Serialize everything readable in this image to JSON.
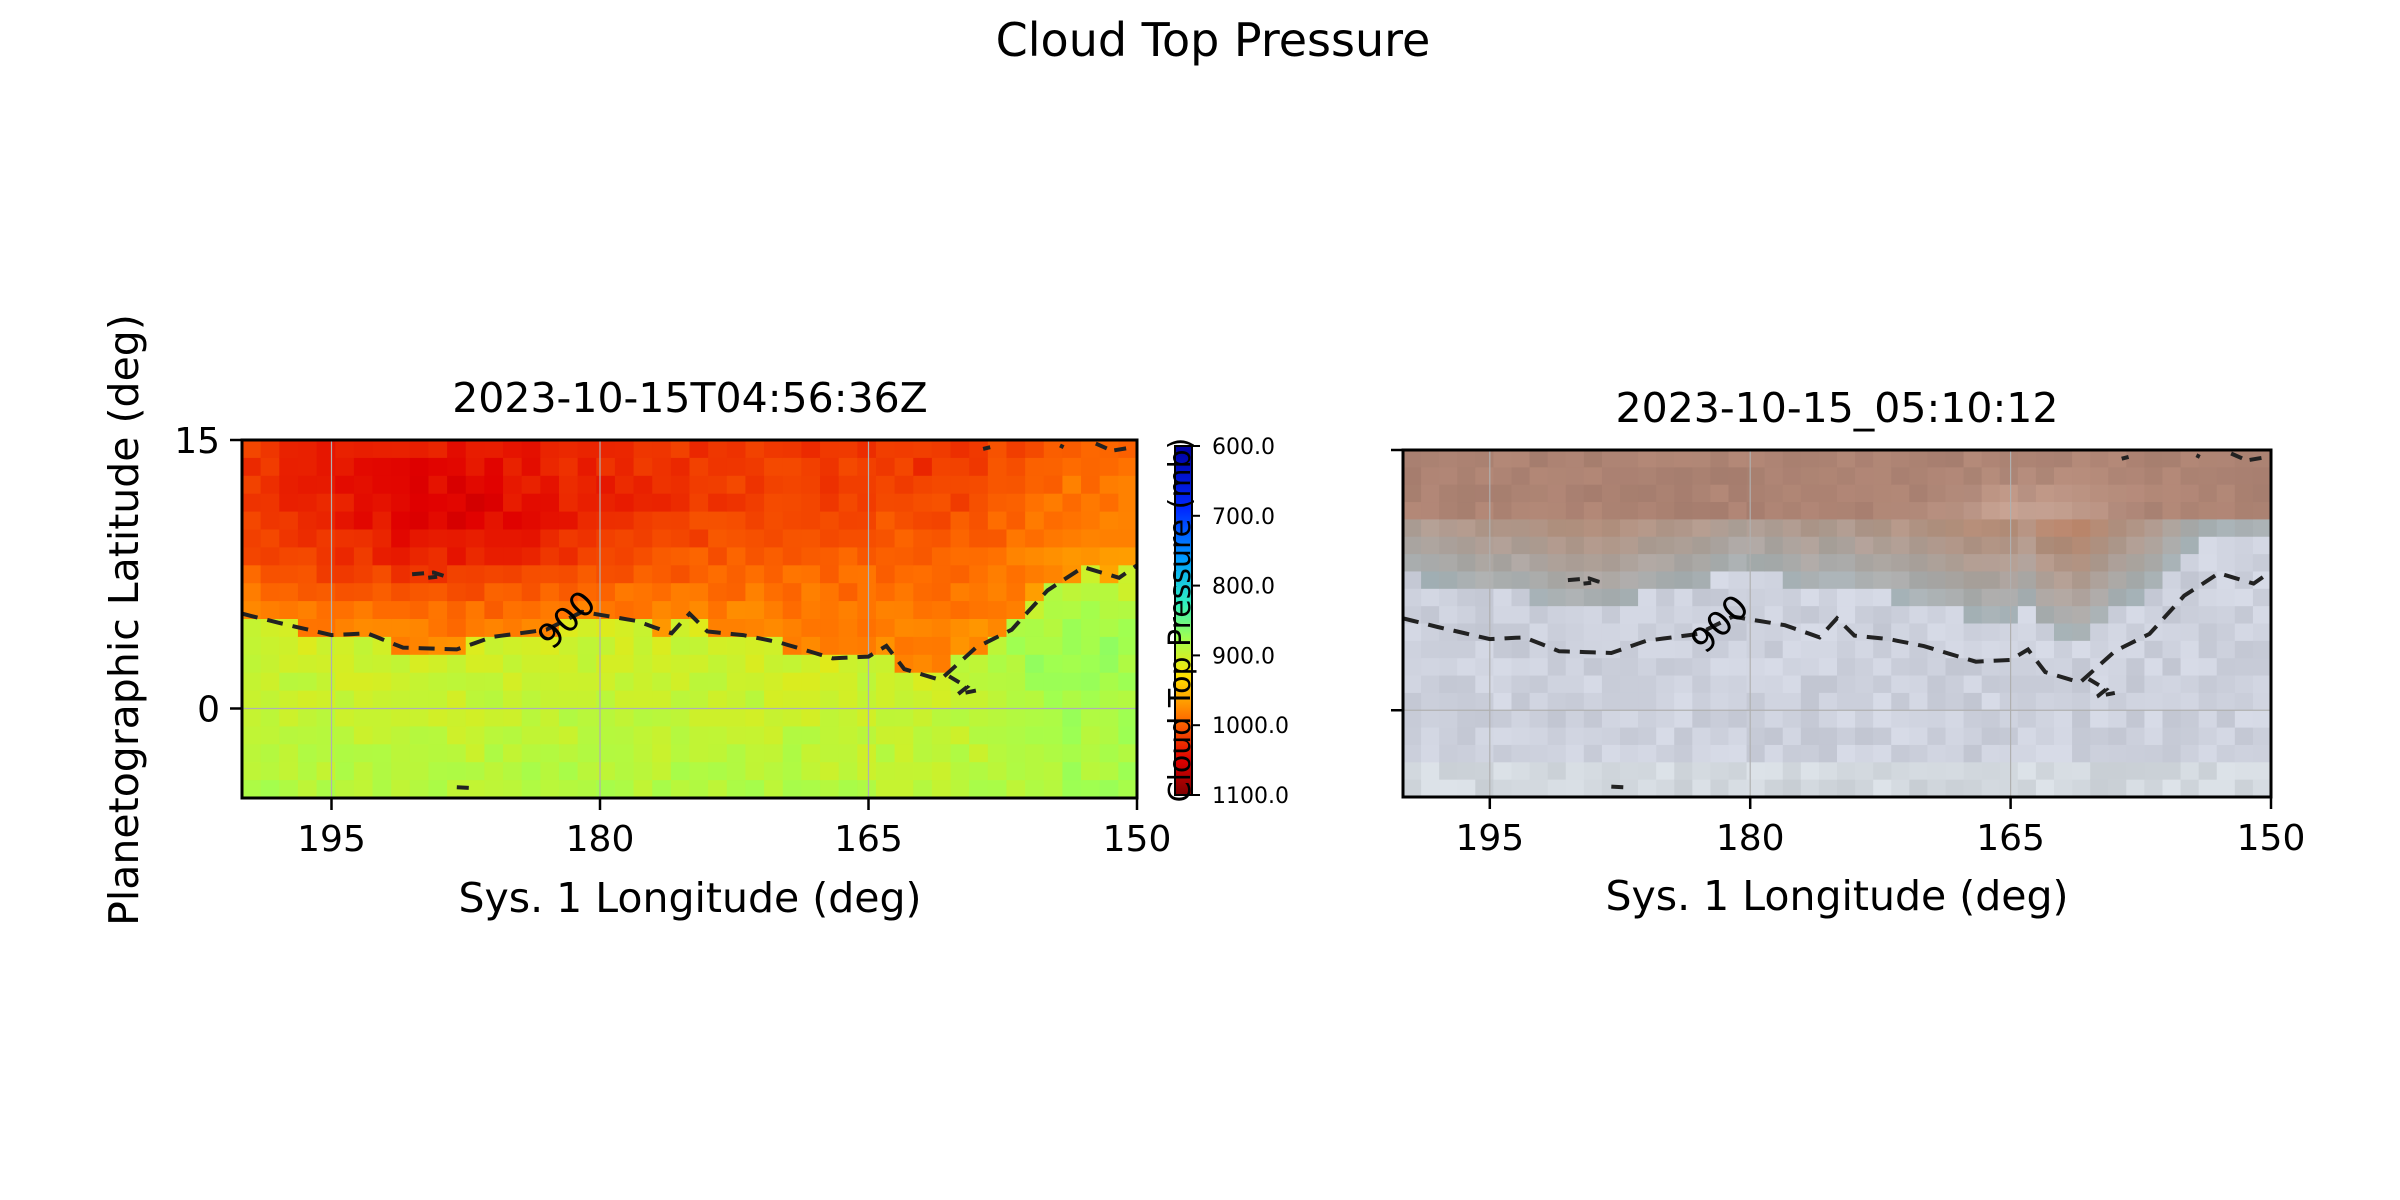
{
  "figure": {
    "title": "Cloud Top Pressure"
  },
  "chart_data": [
    {
      "type": "heatmap",
      "title": "2023-10-15T04:56:36Z",
      "xlabel": "Sys. 1 Longitude (deg)",
      "ylabel": "Planetographic Latitude (deg)",
      "xlim": [
        200,
        150
      ],
      "ylim": [
        -5,
        15
      ],
      "xticks": [
        "195",
        "180",
        "165",
        "150"
      ],
      "yticks": [
        "15",
        "0"
      ],
      "grid": true,
      "colormap": "jet_r",
      "contour": {
        "level": 900,
        "label": "900",
        "style": "dashed"
      },
      "colorbar": {
        "label": "Cloud Top Pressure (mb)",
        "range": [
          600,
          1100
        ],
        "ticks": [
          "600.0",
          "700.0",
          "800.0",
          "900.0",
          "1000.0",
          "1100.0"
        ]
      }
    },
    {
      "type": "heatmap",
      "title": "2023-10-15_05:10:12",
      "xlabel": "Sys. 1 Longitude (deg)",
      "xlim": [
        200,
        150
      ],
      "ylim": [
        -5,
        15
      ],
      "xticks": [
        "195",
        "180",
        "165",
        "150"
      ],
      "grid": true,
      "rendering": "true-color image",
      "contour": {
        "level": 900,
        "label": "900",
        "style": "dashed"
      }
    }
  ]
}
